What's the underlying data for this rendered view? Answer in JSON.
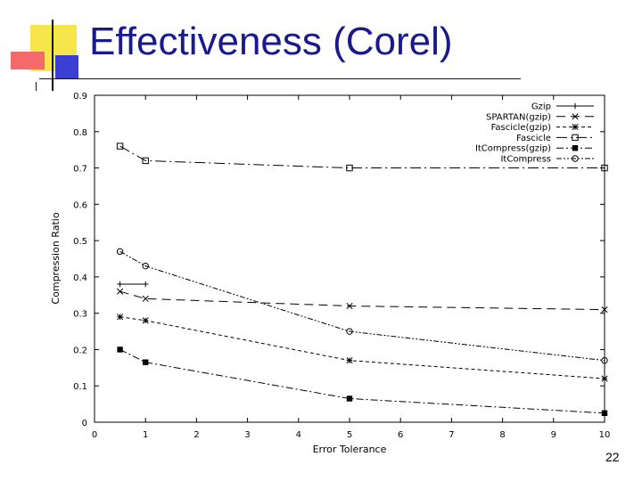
{
  "slide": {
    "title": "Effectiveness (Corel)",
    "page_number": "22"
  },
  "chart_data": {
    "type": "line",
    "title": "",
    "xlabel": "Error Tolerance",
    "ylabel": "Compression Ratio",
    "xlim": [
      0,
      10
    ],
    "ylim": [
      0,
      0.9
    ],
    "xticks": [
      "0",
      "1",
      "2",
      "3",
      "4",
      "5",
      "6",
      "7",
      "8",
      "9",
      "10"
    ],
    "yticks": [
      "0",
      "0.1",
      "0.2",
      "0.3",
      "0.4",
      "0.5",
      "0.6",
      "0.7",
      "0.8",
      "0.9"
    ],
    "legend_position": "top-right",
    "series": [
      {
        "name": "Gzip",
        "marker": "plus",
        "color": "#000000",
        "x": [
          0.5,
          1
        ],
        "y": [
          0.38,
          0.38
        ]
      },
      {
        "name": "SPARTAN(gzip)",
        "marker": "cross",
        "color": "#000000",
        "x": [
          0.5,
          1,
          5,
          10
        ],
        "y": [
          0.36,
          0.34,
          0.32,
          0.31
        ]
      },
      {
        "name": "Fascicle(gzip)",
        "marker": "star",
        "color": "#000000",
        "x": [
          0.5,
          1,
          5,
          10
        ],
        "y": [
          0.29,
          0.28,
          0.17,
          0.12
        ]
      },
      {
        "name": "Fascicle",
        "marker": "square",
        "color": "#000000",
        "x": [
          0.5,
          1,
          5,
          10
        ],
        "y": [
          0.76,
          0.72,
          0.7,
          0.7
        ]
      },
      {
        "name": "ItCompress(gzip)",
        "marker": "filled-square",
        "color": "#000000",
        "x": [
          0.5,
          1,
          5,
          10
        ],
        "y": [
          0.2,
          0.165,
          0.065,
          0.025
        ]
      },
      {
        "name": "ItCompress",
        "marker": "circle",
        "color": "#000000",
        "x": [
          0.5,
          1,
          5,
          10
        ],
        "y": [
          0.47,
          0.43,
          0.25,
          0.17
        ]
      }
    ]
  }
}
